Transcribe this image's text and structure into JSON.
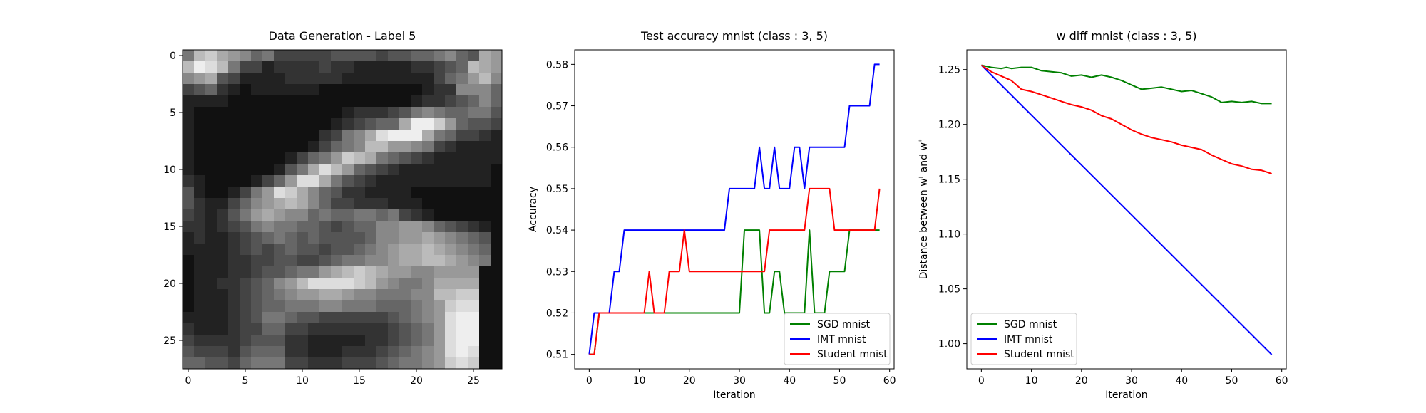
{
  "chart_data": [
    {
      "type": "heatmap",
      "title": "Data Generation - Label 5",
      "xlabel": "",
      "ylabel": "",
      "xticks": [
        0,
        5,
        10,
        15,
        20,
        25
      ],
      "yticks": [
        0,
        5,
        10,
        15,
        20,
        25
      ],
      "xlim": [
        -0.5,
        27.5
      ],
      "ylim": [
        27.5,
        -0.5
      ],
      "colormap": "gray",
      "shape": [
        28,
        28
      ],
      "pixels": [
        "7BCA9867444445555455667865A9",
        "BEDB744233334332222233456BA9",
        "89A54222233333222222224679B8",
        "4563212222221111111112338886",
        "2222111111111111111123345686",
        "2111111111111123334578766775",
        "2111111111111234566AEEC96554",
        "2111111111113478ADEEEA764432",
        "2111111111124678BB99874322221",
        "21111111124679CBA76543222222",
        "21111111257ADB9654322222222",
        "3211112469DDA75432222222222",
        "52112479DCA8653322221111111",
        "53224689ABA864433322211111",
        "4323579A98867667767432111",
        "332345787766545668899865432",
        "232234567656555568899A98765",
        "2222345456554556789AABA9876",
        "1222334455445677889AABBA987",
        "1222334556779ABCBA99889999",
        "1223345689BDDDDCB98778AAAA",
        "122234567899AA98877788BBCC",
        "12223456677788777666789CDD",
        "22223457765544444456789DEE",
        "32223446644333333345679DEE",
        "43333455533222223345679DEE",
        "54443566633222333456789DED",
        "66554677744333444567789CDC"
      ]
    },
    {
      "type": "line",
      "title": "Test accuracy mnist (class : 3, 5)",
      "xlabel": "Iteration",
      "ylabel": "Accuracy",
      "xlim": [
        -2.9,
        60.9
      ],
      "ylim": [
        0.5065,
        0.5835
      ],
      "xticks": [
        0,
        10,
        20,
        30,
        40,
        50,
        60
      ],
      "yticks": [
        0.51,
        0.52,
        0.53,
        0.54,
        0.55,
        0.56,
        0.57,
        0.58
      ],
      "ytick_labels": [
        "0.51",
        "0.52",
        "0.53",
        "0.54",
        "0.55",
        "0.56",
        "0.57",
        "0.58"
      ],
      "legend": "lower-right",
      "series": [
        {
          "name": "SGD mnist",
          "color": "#008000",
          "x": [
            0,
            1,
            2,
            3,
            4,
            5,
            6,
            7,
            8,
            9,
            10,
            11,
            12,
            13,
            14,
            15,
            16,
            17,
            18,
            19,
            20,
            21,
            22,
            23,
            24,
            25,
            26,
            27,
            28,
            29,
            30,
            31,
            32,
            33,
            34,
            35,
            36,
            37,
            38,
            39,
            40,
            41,
            42,
            43,
            44,
            45,
            46,
            47,
            48,
            49,
            50,
            51,
            52,
            53,
            54,
            55,
            56,
            57,
            58
          ],
          "y": [
            0.51,
            0.51,
            0.52,
            0.52,
            0.52,
            0.52,
            0.52,
            0.52,
            0.52,
            0.52,
            0.52,
            0.52,
            0.52,
            0.52,
            0.52,
            0.52,
            0.52,
            0.52,
            0.52,
            0.52,
            0.52,
            0.52,
            0.52,
            0.52,
            0.52,
            0.52,
            0.52,
            0.52,
            0.52,
            0.52,
            0.52,
            0.54,
            0.54,
            0.54,
            0.54,
            0.52,
            0.52,
            0.53,
            0.53,
            0.52,
            0.52,
            0.52,
            0.52,
            0.52,
            0.54,
            0.52,
            0.52,
            0.52,
            0.53,
            0.53,
            0.53,
            0.53,
            0.54,
            0.54,
            0.54,
            0.54,
            0.54,
            0.54,
            0.54
          ]
        },
        {
          "name": "IMT mnist",
          "color": "#0000ff",
          "x": [
            0,
            1,
            2,
            3,
            4,
            5,
            6,
            7,
            8,
            9,
            10,
            11,
            12,
            13,
            14,
            15,
            16,
            17,
            18,
            19,
            20,
            21,
            22,
            23,
            24,
            25,
            26,
            27,
            28,
            29,
            30,
            31,
            32,
            33,
            34,
            35,
            36,
            37,
            38,
            39,
            40,
            41,
            42,
            43,
            44,
            45,
            46,
            47,
            48,
            49,
            50,
            51,
            52,
            53,
            54,
            55,
            56,
            57,
            58
          ],
          "y": [
            0.51,
            0.52,
            0.52,
            0.52,
            0.52,
            0.53,
            0.53,
            0.54,
            0.54,
            0.54,
            0.54,
            0.54,
            0.54,
            0.54,
            0.54,
            0.54,
            0.54,
            0.54,
            0.54,
            0.54,
            0.54,
            0.54,
            0.54,
            0.54,
            0.54,
            0.54,
            0.54,
            0.54,
            0.55,
            0.55,
            0.55,
            0.55,
            0.55,
            0.55,
            0.56,
            0.55,
            0.55,
            0.56,
            0.55,
            0.55,
            0.55,
            0.56,
            0.56,
            0.55,
            0.56,
            0.56,
            0.56,
            0.56,
            0.56,
            0.56,
            0.56,
            0.56,
            0.57,
            0.57,
            0.57,
            0.57,
            0.57,
            0.58,
            0.58
          ]
        },
        {
          "name": "Student mnist",
          "color": "#ff0000",
          "x": [
            0,
            1,
            2,
            3,
            4,
            5,
            6,
            7,
            8,
            9,
            10,
            11,
            12,
            13,
            14,
            15,
            16,
            17,
            18,
            19,
            20,
            21,
            22,
            23,
            24,
            25,
            26,
            27,
            28,
            29,
            30,
            31,
            32,
            33,
            34,
            35,
            36,
            37,
            38,
            39,
            40,
            41,
            42,
            43,
            44,
            45,
            46,
            47,
            48,
            49,
            50,
            51,
            52,
            53,
            54,
            55,
            56,
            57,
            58
          ],
          "y": [
            0.51,
            0.51,
            0.52,
            0.52,
            0.52,
            0.52,
            0.52,
            0.52,
            0.52,
            0.52,
            0.52,
            0.52,
            0.53,
            0.52,
            0.52,
            0.52,
            0.53,
            0.53,
            0.53,
            0.54,
            0.53,
            0.53,
            0.53,
            0.53,
            0.53,
            0.53,
            0.53,
            0.53,
            0.53,
            0.53,
            0.53,
            0.53,
            0.53,
            0.53,
            0.53,
            0.53,
            0.54,
            0.54,
            0.54,
            0.54,
            0.54,
            0.54,
            0.54,
            0.54,
            0.55,
            0.55,
            0.55,
            0.55,
            0.55,
            0.54,
            0.54,
            0.54,
            0.54,
            0.54,
            0.54,
            0.54,
            0.54,
            0.54,
            0.55
          ]
        }
      ]
    },
    {
      "type": "line",
      "title": "w diff mnist (class : 3, 5)",
      "xlabel": "Iteration",
      "ylabel": "Distance between w",
      "ylabel_sup1": "t",
      "ylabel_mid": " and w",
      "ylabel_sup2": "*",
      "xlim": [
        -2.9,
        60.9
      ],
      "ylim": [
        0.977,
        1.268
      ],
      "xticks": [
        0,
        10,
        20,
        30,
        40,
        50,
        60
      ],
      "yticks": [
        1.0,
        1.05,
        1.1,
        1.15,
        1.2,
        1.25
      ],
      "ytick_labels": [
        "1.00",
        "1.05",
        "1.10",
        "1.15",
        "1.20",
        "1.25"
      ],
      "legend": "lower-left",
      "series": [
        {
          "name": "SGD mnist",
          "color": "#008000",
          "x": [
            0,
            2,
            4,
            5,
            6,
            8,
            10,
            12,
            14,
            16,
            18,
            20,
            22,
            24,
            26,
            28,
            30,
            32,
            34,
            36,
            38,
            40,
            42,
            44,
            46,
            48,
            50,
            52,
            54,
            56,
            58
          ],
          "y": [
            1.254,
            1.252,
            1.251,
            1.252,
            1.251,
            1.252,
            1.252,
            1.249,
            1.248,
            1.247,
            1.244,
            1.245,
            1.243,
            1.245,
            1.243,
            1.24,
            1.236,
            1.232,
            1.233,
            1.234,
            1.232,
            1.23,
            1.231,
            1.228,
            1.225,
            1.22,
            1.221,
            1.22,
            1.221,
            1.219,
            1.219
          ]
        },
        {
          "name": "IMT mnist",
          "color": "#0000ff",
          "x": [
            0,
            58
          ],
          "y": [
            1.254,
            0.99
          ]
        },
        {
          "name": "Student mnist",
          "color": "#ff0000",
          "x": [
            0,
            2,
            4,
            6,
            8,
            10,
            12,
            14,
            16,
            18,
            20,
            22,
            24,
            26,
            28,
            30,
            32,
            34,
            36,
            38,
            40,
            42,
            44,
            46,
            48,
            50,
            52,
            54,
            56,
            58
          ],
          "y": [
            1.254,
            1.248,
            1.244,
            1.24,
            1.232,
            1.23,
            1.227,
            1.224,
            1.221,
            1.218,
            1.216,
            1.213,
            1.208,
            1.205,
            1.2,
            1.195,
            1.191,
            1.188,
            1.186,
            1.184,
            1.181,
            1.179,
            1.177,
            1.172,
            1.168,
            1.164,
            1.162,
            1.159,
            1.158,
            1.155
          ]
        }
      ]
    }
  ]
}
